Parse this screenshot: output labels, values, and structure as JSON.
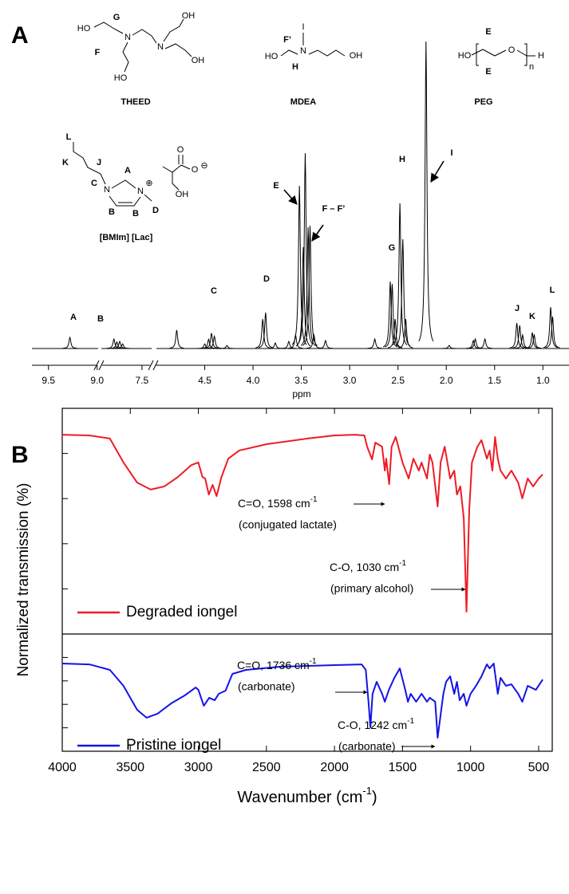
{
  "panel_labels": [
    "A",
    "B"
  ],
  "structure_labels": [
    "HO",
    "G",
    "N",
    "N",
    "OH",
    "OH",
    "F",
    "HO",
    "THEED",
    "I",
    "F’",
    "N",
    "HO",
    "H",
    "OH",
    "MDEA",
    "E",
    "HO",
    "O",
    "n",
    "H",
    "E",
    "PEG",
    "L",
    "K",
    "J",
    "C",
    "N",
    "A",
    "N",
    "⊕",
    "B",
    "B",
    "D",
    "O",
    "O",
    "⊖",
    "OH",
    "[BMIm] [Lac]"
  ],
  "chart_data": [
    {
      "type": "spectrum",
      "xlabel": "ppm",
      "xlim": [
        [
          9.67,
          8.99
        ],
        [
          7.92,
          7.4
        ],
        [
          5.0,
          0.73
        ]
      ],
      "xticks": [
        9.5,
        {
          "value": 9,
          "label": "9.0"
        },
        7.5,
        4.5,
        {
          "value": 4,
          "label": "4.0"
        },
        3.5,
        {
          "value": 3,
          "label": "3.0"
        },
        2.5,
        {
          "value": 2,
          "label": "2.0"
        },
        1.5,
        {
          "value": 1,
          "label": "1.0"
        }
      ],
      "ylim": [
        0,
        100
      ],
      "color": "#000000",
      "x": [
        9.28,
        7.79,
        7.76,
        7.73,
        7.7,
        4.79,
        4.5,
        4.46,
        4.43,
        4.4,
        4.27,
        3.9,
        3.87,
        3.77,
        3.63,
        3.56,
        3.52,
        3.48,
        3.46,
        3.43,
        3.41,
        3.37,
        3.25,
        2.74,
        2.58,
        2.56,
        2.53,
        2.48,
        2.45,
        2.42,
        2.21,
        1.97,
        1.72,
        1.7,
        1.6,
        1.27,
        1.24,
        1.21,
        1.11,
        1.09,
        0.92,
        0.9
      ],
      "values": [
        3.6,
        3.1,
        2.1,
        2.3,
        1.5,
        6,
        1.5,
        3,
        5,
        4,
        1,
        9.6,
        11.7,
        1.8,
        2.3,
        4.4,
        53,
        33,
        63.6,
        39.5,
        40,
        4.4,
        2.6,
        3.1,
        21.8,
        21,
        9.6,
        47.3,
        35.6,
        9.6,
        100,
        1,
        2.6,
        3.1,
        3.1,
        8.3,
        7.5,
        4.4,
        5.2,
        4.4,
        13.5,
        10.4
      ],
      "peak_labels": [
        "A",
        "B",
        "C",
        "D",
        "E",
        "F – F’",
        "G",
        "H",
        "I",
        "J",
        "K",
        "L"
      ]
    },
    {
      "type": "line",
      "ylabel": "Normalized transmission (%)",
      "xlim": [
        4000,
        400
      ],
      "ylim": [
        0,
        100
      ],
      "yticks": [
        20,
        40,
        60,
        80
      ],
      "x": [
        4000,
        3800,
        3650,
        3550,
        3450,
        3350,
        3250,
        3150,
        3050,
        3000,
        2970,
        2950,
        2923,
        2895,
        2866,
        2830,
        2780,
        2700,
        2500,
        2200,
        2000,
        1850,
        1780,
        1760,
        1724,
        1700,
        1650,
        1630,
        1620,
        1598,
        1580,
        1550,
        1500,
        1455,
        1420,
        1380,
        1360,
        1320,
        1300,
        1280,
        1242,
        1220,
        1190,
        1150,
        1120,
        1100,
        1075,
        1050,
        1030,
        1010,
        990,
        950,
        920,
        880,
        860,
        840,
        820,
        800,
        780,
        740,
        700,
        650,
        620,
        580,
        540,
        500,
        470
      ],
      "series": [
        {
          "name": "Degraded iongel",
          "color": "#ee1c25",
          "values": [
            88.3,
            88,
            86.6,
            76,
            67.1,
            64,
            65.4,
            69.6,
            74.9,
            76,
            69.6,
            68.9,
            61.8,
            66.1,
            61.1,
            69.6,
            77.7,
            81.3,
            84.1,
            86.6,
            88,
            88.3,
            88,
            83,
            77.4,
            84.8,
            83,
            72.4,
            77.7,
            66.4,
            83,
            87.3,
            76,
            68.9,
            77.7,
            72.4,
            76,
            68.9,
            79.5,
            76,
            56.5,
            76,
            83,
            68.9,
            72.4,
            61.8,
            65.4,
            51.2,
            9.9,
            54.8,
            76,
            83,
            85.9,
            77.7,
            81.3,
            72.4,
            87.3,
            77.7,
            72.4,
            68.9,
            72.4,
            67.1,
            60.1,
            68.9,
            65.4,
            68.9,
            70.7
          ]
        }
      ],
      "annotations": [
        {
          "label": "C=O, 1598 cm",
          "superscript": "-1",
          "detail": "(conjugated lactate)"
        },
        {
          "label": "C-O, 1030 cm",
          "superscript": "-1",
          "detail": "(primary alcohol)"
        }
      ]
    },
    {
      "type": "line",
      "xlabel": [
        "Wavenumber (cm",
        "-1",
        ")"
      ],
      "xlim": [
        4000,
        400
      ],
      "xticks": [
        4000,
        3500,
        3000,
        2500,
        2000,
        1500,
        1000,
        500
      ],
      "ylim": [
        0,
        100
      ],
      "yticks": [
        20,
        40,
        60,
        80
      ],
      "x": [
        4000,
        3800,
        3650,
        3550,
        3450,
        3380,
        3300,
        3200,
        3100,
        3020,
        3000,
        2960,
        2920,
        2880,
        2850,
        2800,
        2750,
        2650,
        2400,
        2000,
        1800,
        1770,
        1750,
        1736,
        1720,
        1690,
        1650,
        1630,
        1600,
        1560,
        1520,
        1480,
        1460,
        1440,
        1400,
        1360,
        1320,
        1300,
        1260,
        1242,
        1200,
        1180,
        1150,
        1120,
        1100,
        1080,
        1050,
        1030,
        1000,
        960,
        920,
        880,
        860,
        830,
        800,
        780,
        740,
        700,
        650,
        620,
        580,
        520,
        470
      ],
      "series": [
        {
          "name": "Pristine iongel",
          "color": "#1414e6",
          "values": [
            74.8,
            74.1,
            69.4,
            55.8,
            35.4,
            28.6,
            32,
            40.8,
            47.6,
            54.4,
            52.4,
            38.8,
            45.6,
            43.5,
            49,
            51.7,
            66,
            69.4,
            72.1,
            73.5,
            74.1,
            69.4,
            42.2,
            20.4,
            49,
            59.2,
            49,
            42.2,
            52.4,
            62.6,
            70.7,
            52.4,
            42.2,
            49,
            42.2,
            49,
            42.2,
            45.6,
            42.2,
            11.6,
            49,
            59.2,
            63.9,
            49,
            59.2,
            43.5,
            49,
            38.8,
            49,
            55.8,
            63.9,
            74.1,
            70.7,
            74.8,
            49,
            62.6,
            55.8,
            57.1,
            49,
            42.2,
            55.8,
            52.4,
            61.2
          ]
        }
      ],
      "annotations": [
        {
          "label": "C=O, 1736 cm",
          "superscript": "-1",
          "detail": "(carbonate)"
        },
        {
          "label": "C-O, 1242 cm",
          "superscript": "-1",
          "detail": "(carbonate)"
        }
      ]
    }
  ]
}
